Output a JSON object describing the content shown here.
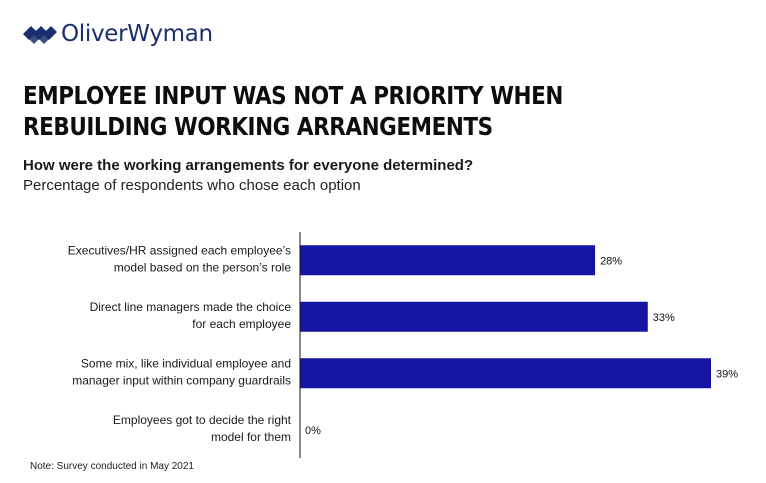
{
  "brand": {
    "name": "OliverWyman",
    "logo_icon": "oliver-wyman-logo-icon",
    "color": "#1b2f6e"
  },
  "headline": "EMPLOYEE INPUT WAS NOT A PRIORITY WHEN REBUILDING WORKING ARRANGEMENTS",
  "question": "How were the working arrangements for everyone determined?",
  "subtitle": "Percentage of respondents who chose each option",
  "note": "Note: Survey conducted in May 2021",
  "chart_data": {
    "type": "bar",
    "orientation": "horizontal",
    "categories": [
      [
        "Executives/HR assigned each employee’s",
        "model based on the person’s role"
      ],
      [
        "Direct line managers made the choice",
        "for each employee"
      ],
      [
        "Some mix, like individual employee and",
        "manager input within company guardrails"
      ],
      [
        "Employees got to decide the right",
        "model for them"
      ]
    ],
    "values": [
      28,
      33,
      39,
      0
    ],
    "data_labels": [
      "28%",
      "33%",
      "39%",
      "0%"
    ],
    "unit": "%",
    "xlim": [
      0,
      39
    ],
    "bar_color": "#1515a3",
    "grid": false,
    "legend": "none"
  }
}
